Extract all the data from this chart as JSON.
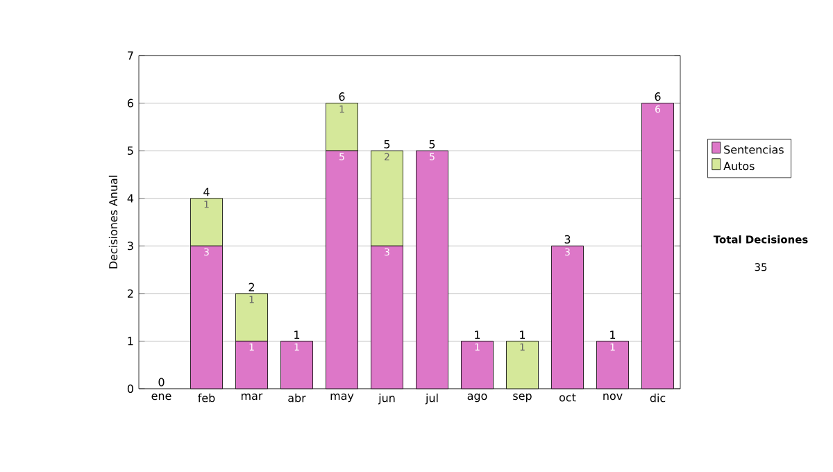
{
  "chart_data": {
    "type": "bar",
    "stacked": true,
    "categories": [
      "ene",
      "feb",
      "mar",
      "abr",
      "may",
      "jun",
      "jul",
      "ago",
      "sep",
      "oct",
      "nov",
      "dic"
    ],
    "ylabel": "Decisiones Anual",
    "ylim": [
      0,
      7
    ],
    "yticks": [
      0,
      1,
      2,
      3,
      4,
      5,
      6,
      7
    ],
    "grid": "y",
    "legend": "right",
    "series": [
      {
        "name": "Sentencias",
        "color": "#dd77c8",
        "values": [
          0,
          3,
          1,
          1,
          5,
          3,
          5,
          1,
          0,
          3,
          1,
          6
        ],
        "value_labels": [
          null,
          "3",
          "1",
          "1",
          "5",
          "3",
          "5",
          "1",
          null,
          "3",
          "1",
          "6"
        ]
      },
      {
        "name": "Autos",
        "color": "#d5e89a",
        "values": [
          0,
          1,
          1,
          0,
          1,
          2,
          0,
          0,
          1,
          0,
          0,
          0
        ],
        "value_labels": [
          null,
          "1",
          "1",
          null,
          "1",
          "2",
          null,
          null,
          "1",
          null,
          null,
          null
        ]
      }
    ],
    "totals": [
      "0",
      "4",
      "2",
      "1",
      "6",
      "5",
      "5",
      "1",
      "1",
      "3",
      "1",
      "6"
    ],
    "annotations": [
      "**Total Decisiones**",
      "35"
    ]
  }
}
